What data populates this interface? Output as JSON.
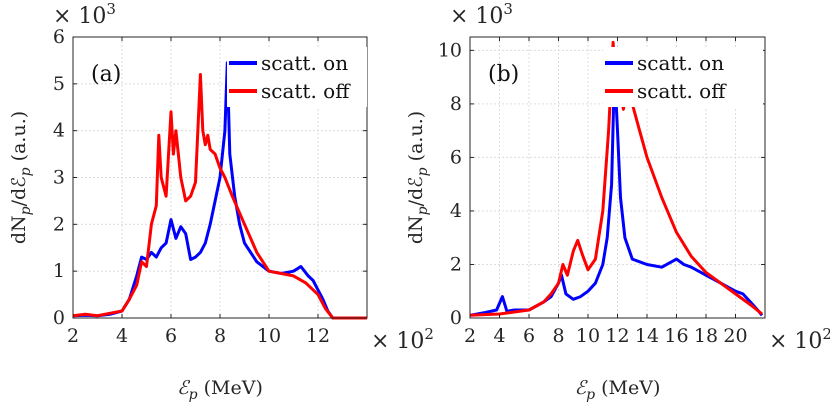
{
  "chart_data": [
    {
      "type": "line",
      "panel_label": "(a)",
      "xlabel_symbol": "ℰ",
      "xlabel_sub": "p",
      "xlabel_unit": "(MeV)",
      "ylabel_prefix": "dN",
      "ylabel_sub1": "p",
      "ylabel_mid": "/dℰ",
      "ylabel_sub2": "p",
      "ylabel_unit": "(a.u.)",
      "x_multiplier": "× 10",
      "x_multiplier_exp": "2",
      "y_multiplier": "× 10",
      "y_multiplier_exp": "3",
      "xlim": [
        2,
        14
      ],
      "ylim": [
        0,
        6
      ],
      "xticks": [
        2,
        4,
        6,
        8,
        10,
        12
      ],
      "yticks": [
        0,
        1,
        2,
        3,
        4,
        5,
        6
      ],
      "grid": true,
      "legend_position": "top-right",
      "series": [
        {
          "name": "scatt. on",
          "color": "#0000ff",
          "x": [
            2.0,
            2.5,
            3.0,
            3.5,
            4.0,
            4.3,
            4.6,
            4.8,
            5.0,
            5.2,
            5.4,
            5.6,
            5.8,
            6.0,
            6.2,
            6.4,
            6.6,
            6.8,
            7.0,
            7.2,
            7.4,
            7.6,
            7.8,
            8.0,
            8.2,
            8.3,
            8.4,
            8.6,
            8.8,
            9.0,
            9.5,
            10.0,
            10.5,
            11.0,
            11.3,
            11.6,
            11.8,
            12.0,
            12.2,
            12.4,
            12.6,
            14.0
          ],
          "y": [
            0.05,
            0.06,
            0.05,
            0.08,
            0.15,
            0.4,
            0.9,
            1.3,
            1.25,
            1.4,
            1.3,
            1.5,
            1.6,
            2.1,
            1.7,
            1.95,
            1.8,
            1.25,
            1.3,
            1.4,
            1.6,
            2.0,
            2.5,
            3.0,
            4.0,
            5.45,
            3.5,
            2.6,
            2.0,
            1.6,
            1.2,
            1.0,
            0.95,
            1.0,
            1.1,
            0.9,
            0.8,
            0.6,
            0.4,
            0.15,
            0.0,
            0.0
          ]
        },
        {
          "name": "scatt. off",
          "color": "#ff0000",
          "x": [
            2.0,
            2.5,
            3.0,
            3.5,
            4.0,
            4.3,
            4.6,
            4.8,
            5.0,
            5.2,
            5.4,
            5.5,
            5.6,
            5.8,
            6.0,
            6.1,
            6.2,
            6.4,
            6.6,
            6.8,
            7.0,
            7.2,
            7.3,
            7.4,
            7.5,
            7.6,
            7.8,
            8.0,
            8.2,
            8.5,
            9.0,
            9.5,
            10.0,
            10.5,
            11.0,
            11.5,
            12.0,
            12.3,
            12.6,
            14.0
          ],
          "y": [
            0.05,
            0.08,
            0.05,
            0.1,
            0.15,
            0.4,
            0.7,
            1.2,
            1.1,
            2.0,
            2.4,
            3.9,
            3.0,
            2.6,
            4.4,
            3.5,
            4.0,
            3.0,
            2.5,
            2.6,
            2.9,
            5.2,
            4.0,
            3.7,
            3.9,
            3.6,
            3.5,
            3.2,
            3.0,
            2.6,
            2.0,
            1.4,
            1.0,
            0.95,
            0.9,
            0.75,
            0.5,
            0.2,
            0.0,
            0.0
          ]
        }
      ]
    },
    {
      "type": "line",
      "panel_label": "(b)",
      "xlabel_symbol": "ℰ",
      "xlabel_sub": "p",
      "xlabel_unit": "(MeV)",
      "ylabel_prefix": "dN",
      "ylabel_sub1": "p",
      "ylabel_mid": "/dℰ",
      "ylabel_sub2": "p",
      "ylabel_unit": "(a.u.)",
      "x_multiplier": "× 10",
      "x_multiplier_exp": "2",
      "y_multiplier": "× 10",
      "y_multiplier_exp": "3",
      "xlim": [
        2,
        22
      ],
      "ylim": [
        0,
        10.5
      ],
      "xticks": [
        2,
        4,
        6,
        8,
        10,
        12,
        14,
        16,
        18,
        20
      ],
      "yticks": [
        0,
        2,
        4,
        6,
        8,
        10
      ],
      "grid": true,
      "legend_position": "top-right",
      "series": [
        {
          "name": "scatt. on",
          "color": "#0000ff",
          "x": [
            2.0,
            3.0,
            3.8,
            4.2,
            4.5,
            5.0,
            6.0,
            7.0,
            7.5,
            8.0,
            8.2,
            8.5,
            9.0,
            9.5,
            10.0,
            10.5,
            11.0,
            11.3,
            11.6,
            11.8,
            12.0,
            12.2,
            12.5,
            13.0,
            14.0,
            15.0,
            16.0,
            16.5,
            17.0,
            18.0,
            19.0,
            20.0,
            20.5,
            21.0,
            21.5,
            21.8
          ],
          "y": [
            0.1,
            0.2,
            0.3,
            0.8,
            0.25,
            0.3,
            0.3,
            0.6,
            0.8,
            1.3,
            1.6,
            0.9,
            0.7,
            0.8,
            1.0,
            1.3,
            2.0,
            3.0,
            5.0,
            9.3,
            7.0,
            4.5,
            3.0,
            2.2,
            2.0,
            1.9,
            2.2,
            2.0,
            1.9,
            1.6,
            1.3,
            1.0,
            0.9,
            0.6,
            0.3,
            0.1
          ]
        },
        {
          "name": "scatt. off",
          "color": "#ff0000",
          "x": [
            2.0,
            4.0,
            6.0,
            7.0,
            7.5,
            8.0,
            8.3,
            8.6,
            9.0,
            9.3,
            9.6,
            10.0,
            10.5,
            11.0,
            11.4,
            11.7,
            11.9,
            12.1,
            12.4,
            12.7,
            13.0,
            13.5,
            14.0,
            15.0,
            16.0,
            17.0,
            18.0,
            19.0,
            20.0,
            21.0,
            21.8
          ],
          "y": [
            0.1,
            0.15,
            0.3,
            0.6,
            0.9,
            1.3,
            2.0,
            1.6,
            2.5,
            2.9,
            2.4,
            1.8,
            2.2,
            4.0,
            7.0,
            10.3,
            8.5,
            8.8,
            7.8,
            8.8,
            8.0,
            7.0,
            6.0,
            4.5,
            3.2,
            2.3,
            1.7,
            1.3,
            0.9,
            0.5,
            0.15
          ]
        }
      ]
    }
  ]
}
